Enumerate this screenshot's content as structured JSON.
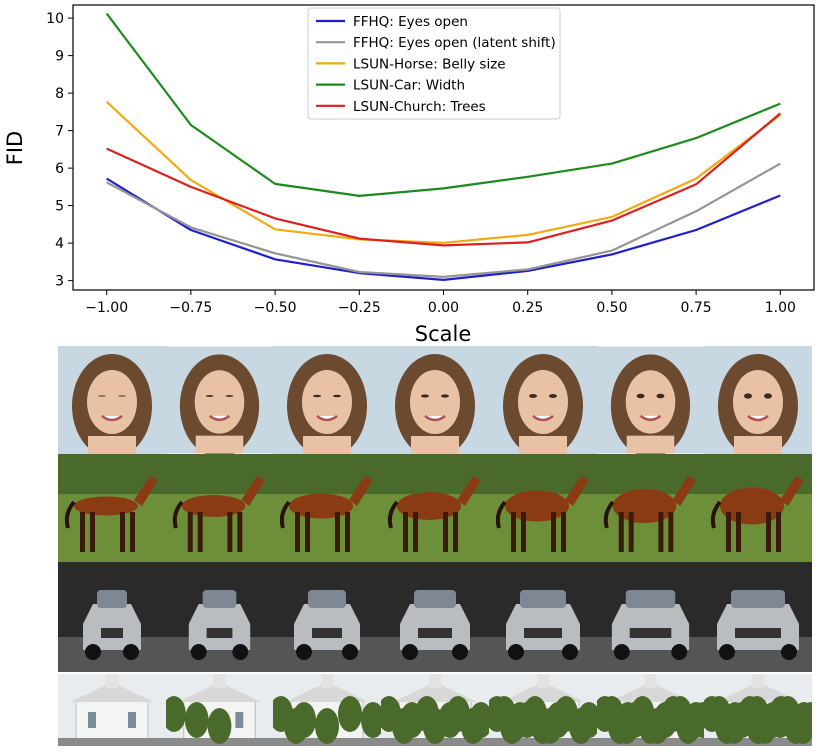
{
  "chart_data": {
    "type": "line",
    "xlabel": "Scale",
    "ylabel": "FID",
    "xlim": [
      -1.1,
      1.1
    ],
    "ylim": [
      2.75,
      10.35
    ],
    "grid": false,
    "legend_position": "top-center",
    "x": [
      -1.0,
      -0.75,
      -0.5,
      -0.25,
      0.0,
      0.25,
      0.5,
      0.75,
      1.0
    ],
    "xtick_values": [
      -1.0,
      -0.75,
      -0.5,
      -0.25,
      0.0,
      0.25,
      0.5,
      0.75,
      1.0
    ],
    "xtick_labels": [
      "−1.00",
      "−0.75",
      "−0.50",
      "−0.25",
      "0.00",
      "0.25",
      "0.50",
      "0.75",
      "1.00"
    ],
    "ytick_values": [
      3,
      4,
      5,
      6,
      7,
      8,
      9,
      10
    ],
    "ytick_labels": [
      "3",
      "4",
      "5",
      "6",
      "7",
      "8",
      "9",
      "10"
    ],
    "series": [
      {
        "name": "FFHQ: Eyes open",
        "color": "#1f1fd0",
        "values": [
          5.72,
          4.35,
          3.57,
          3.2,
          3.02,
          3.26,
          3.7,
          4.35,
          5.27
        ]
      },
      {
        "name": "FFHQ: Eyes open (latent shift)",
        "color": "#959595",
        "values": [
          5.62,
          4.42,
          3.73,
          3.23,
          3.1,
          3.3,
          3.8,
          4.85,
          6.12
        ]
      },
      {
        "name": "LSUN-Horse: Belly size",
        "color": "#f2aa14",
        "values": [
          7.77,
          5.68,
          4.37,
          4.1,
          4.01,
          4.22,
          4.7,
          5.72,
          7.42
        ]
      },
      {
        "name": "LSUN-Car: Width",
        "color": "#1e8a1e",
        "values": [
          10.12,
          7.15,
          5.58,
          5.26,
          5.46,
          5.77,
          6.12,
          6.8,
          7.72
        ]
      },
      {
        "name": "LSUN-Church: Trees",
        "color": "#dc1f1f",
        "values": [
          6.52,
          5.5,
          4.66,
          4.12,
          3.94,
          4.02,
          4.6,
          5.57,
          7.46
        ]
      }
    ]
  },
  "image_grid": {
    "rows": [
      "ffhq-face",
      "lsun-horse",
      "lsun-car",
      "lsun-church"
    ],
    "columns": 7
  },
  "colors": {
    "axis": "#000000",
    "face_bg": "#c8d8e2",
    "hair": "#6b4a30",
    "skin": "#e9c2a6",
    "horse": "#8a3b14",
    "grass": "#6e8f3a",
    "trees": "#4a6a2c",
    "car_body": "#b9bcc0",
    "car_bg": "#2a2a2a",
    "church_wall": "#f4f4f2",
    "sky": "#e9ecef"
  }
}
